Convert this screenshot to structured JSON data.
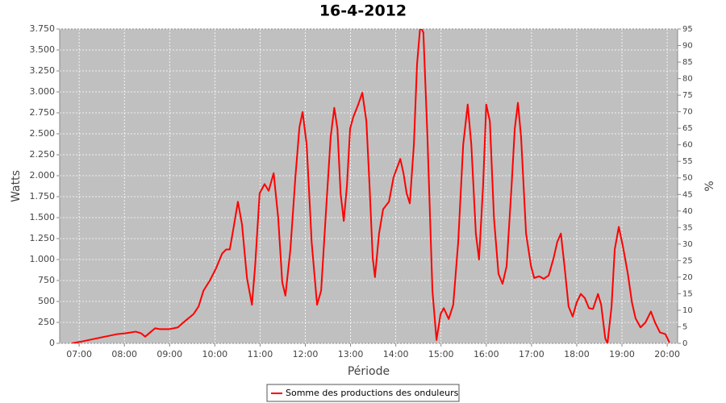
{
  "chart_data": {
    "type": "line",
    "title": "16-4-2012",
    "x_label": "Période",
    "y_label": "Watts",
    "y2_label": "%",
    "xlim": [
      6.57,
      20.23
    ],
    "xticks": [
      {
        "value": 7,
        "label": "07:00"
      },
      {
        "value": 8,
        "label": "08:00"
      },
      {
        "value": 9,
        "label": "09:00"
      },
      {
        "value": 10,
        "label": "10:00"
      },
      {
        "value": 11,
        "label": "11:00"
      },
      {
        "value": 12,
        "label": "12:00"
      },
      {
        "value": 13,
        "label": "13:00"
      },
      {
        "value": 14,
        "label": "14:00"
      },
      {
        "value": 15,
        "label": "15:00"
      },
      {
        "value": 16,
        "label": "16:00"
      },
      {
        "value": 17,
        "label": "17:00"
      },
      {
        "value": 18,
        "label": "18:00"
      },
      {
        "value": 19,
        "label": "19:00"
      },
      {
        "value": 20,
        "label": "20:00"
      }
    ],
    "ylim": [
      0,
      3750
    ],
    "yticks": [
      0,
      250,
      500,
      750,
      {
        "value": 1000,
        "label": "1.000"
      },
      {
        "value": 1250,
        "label": "1.250"
      },
      {
        "value": 1500,
        "label": "1.500"
      },
      {
        "value": 1750,
        "label": "1.750"
      },
      {
        "value": 2000,
        "label": "2.000"
      },
      {
        "value": 2250,
        "label": "2.250"
      },
      {
        "value": 2500,
        "label": "2.500"
      },
      {
        "value": 2750,
        "label": "2.750"
      },
      {
        "value": 3000,
        "label": "3.000"
      },
      {
        "value": 3250,
        "label": "3.250"
      },
      {
        "value": 3500,
        "label": "3.500"
      },
      {
        "value": 3750,
        "label": "3.750"
      }
    ],
    "y2lim": [
      0,
      95
    ],
    "y2ticks": [
      0,
      5,
      10,
      15,
      20,
      25,
      30,
      35,
      40,
      45,
      50,
      55,
      60,
      65,
      70,
      75,
      80,
      85,
      90,
      95
    ],
    "grid": true,
    "legend": "bottom",
    "x": [
      6.84,
      7.04,
      7.3,
      7.57,
      7.84,
      8.02,
      8.14,
      8.25,
      8.37,
      8.46,
      8.59,
      8.68,
      8.78,
      9.0,
      9.18,
      9.35,
      9.53,
      9.64,
      9.75,
      9.89,
      10.03,
      10.16,
      10.25,
      10.33,
      10.42,
      10.51,
      10.6,
      10.71,
      10.82,
      10.89,
      10.99,
      11.1,
      11.19,
      11.3,
      11.4,
      11.49,
      11.56,
      11.67,
      11.78,
      11.87,
      11.94,
      12.03,
      12.14,
      12.26,
      12.35,
      12.46,
      12.56,
      12.64,
      12.71,
      12.78,
      12.85,
      12.92,
      12.99,
      13.06,
      13.17,
      13.26,
      13.35,
      13.42,
      13.49,
      13.54,
      13.63,
      13.72,
      13.85,
      13.95,
      14.1,
      14.17,
      14.24,
      14.31,
      14.4,
      14.47,
      14.54,
      14.61,
      14.7,
      14.81,
      14.9,
      14.99,
      15.06,
      15.17,
      15.27,
      15.38,
      15.49,
      15.59,
      15.67,
      15.77,
      15.84,
      15.93,
      16.0,
      16.08,
      16.17,
      16.27,
      16.36,
      16.45,
      16.56,
      16.63,
      16.7,
      16.77,
      16.88,
      16.99,
      17.06,
      17.17,
      17.27,
      17.38,
      17.49,
      17.57,
      17.65,
      17.73,
      17.82,
      17.91,
      18.0,
      18.09,
      18.18,
      18.27,
      18.36,
      18.47,
      18.54,
      18.63,
      18.68,
      18.77,
      18.84,
      18.93,
      19.02,
      19.13,
      19.22,
      19.3,
      19.41,
      19.52,
      19.64,
      19.73,
      19.84,
      19.96,
      20.05
    ],
    "series": [
      {
        "name": "Somme des productions des onduleurs",
        "color": "#ff0000",
        "values": [
          0,
          20,
          50,
          80,
          110,
          120,
          130,
          140,
          120,
          80,
          140,
          180,
          170,
          170,
          190,
          270,
          350,
          440,
          630,
          750,
          900,
          1070,
          1120,
          1120,
          1400,
          1690,
          1420,
          780,
          460,
          920,
          1790,
          1900,
          1820,
          2030,
          1500,
          730,
          570,
          1120,
          1980,
          2580,
          2760,
          2370,
          1210,
          460,
          630,
          1600,
          2460,
          2810,
          2560,
          1790,
          1460,
          1880,
          2560,
          2700,
          2850,
          2990,
          2650,
          1880,
          1020,
          790,
          1310,
          1600,
          1690,
          1980,
          2200,
          2030,
          1790,
          1670,
          2370,
          3330,
          3780,
          3710,
          2460,
          630,
          40,
          350,
          420,
          290,
          460,
          1210,
          2370,
          2850,
          2370,
          1310,
          1000,
          1880,
          2850,
          2650,
          1500,
          830,
          710,
          920,
          1880,
          2560,
          2870,
          2460,
          1310,
          920,
          780,
          800,
          770,
          810,
          1020,
          1210,
          1310,
          920,
          440,
          320,
          490,
          590,
          540,
          420,
          410,
          590,
          460,
          60,
          0,
          440,
          1120,
          1390,
          1160,
          830,
          490,
          300,
          190,
          250,
          380,
          250,
          130,
          110,
          10
        ]
      }
    ]
  }
}
